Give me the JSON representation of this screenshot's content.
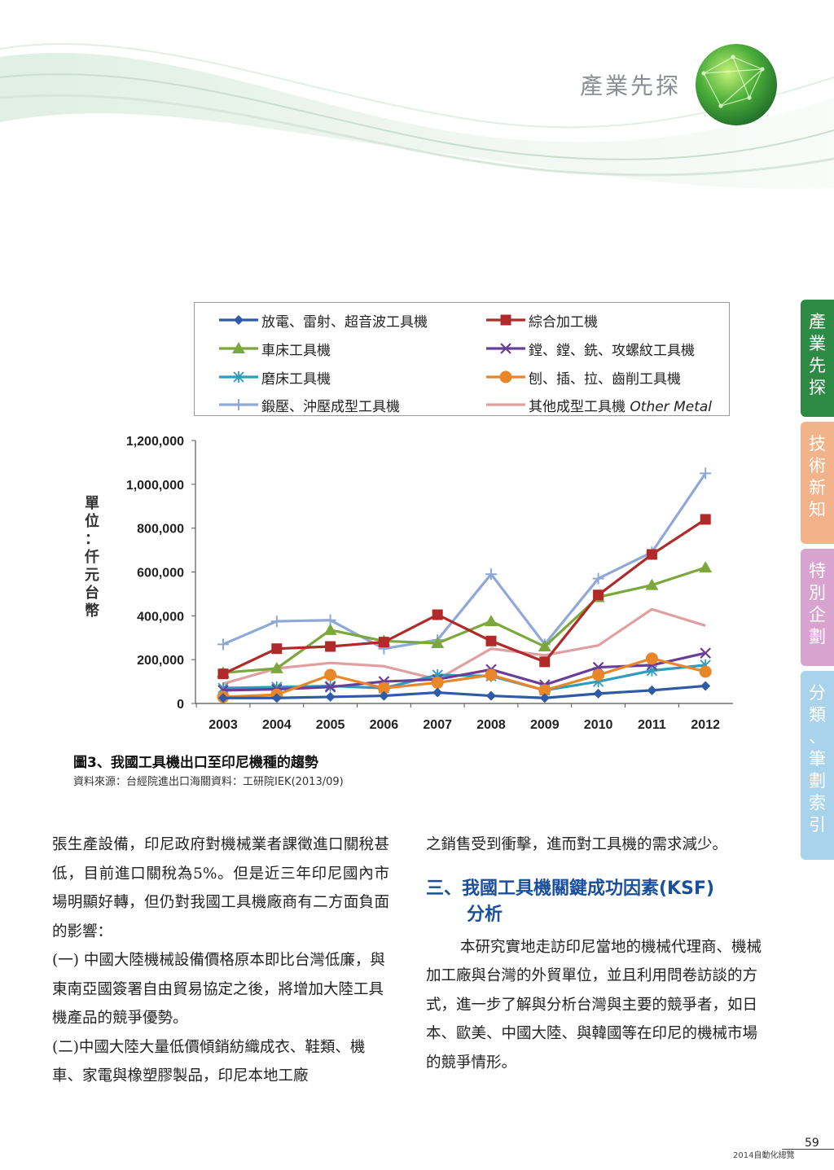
{
  "header": {
    "section": "產業先探"
  },
  "side_tabs": [
    {
      "label": "產業先探",
      "color": "#2e8b45"
    },
    {
      "label": "技術新知",
      "color": "#f2b38a"
    },
    {
      "label": "特別企劃",
      "color": "#d9a3d0"
    },
    {
      "label": "分類、筆劃索引",
      "color": "#a8d3ea"
    }
  ],
  "chart_data": {
    "type": "line",
    "categories": [
      "2003",
      "2004",
      "2005",
      "2006",
      "2007",
      "2008",
      "2009",
      "2010",
      "2011",
      "2012"
    ],
    "y_ticks": [
      "0",
      "200,000",
      "400,000",
      "600,000",
      "800,000",
      "1,000,000",
      "1,200,000"
    ],
    "ylim": [
      0,
      1200000
    ],
    "ylabel": "單位：仟元台幣",
    "legend_placement": "top",
    "series": [
      {
        "name": "放電、雷射、超音波工具機",
        "color": "#2e5aa8",
        "marker": "diamond",
        "values": [
          25000,
          25000,
          30000,
          35000,
          50000,
          35000,
          25000,
          45000,
          60000,
          80000
        ]
      },
      {
        "name": "綜合加工機",
        "color": "#b02a2a",
        "marker": "square",
        "values": [
          135000,
          250000,
          260000,
          280000,
          405000,
          285000,
          190000,
          495000,
          680000,
          840000
        ]
      },
      {
        "name": "車床工具機",
        "color": "#7ba83a",
        "marker": "triangle",
        "values": [
          140000,
          160000,
          335000,
          285000,
          275000,
          375000,
          260000,
          485000,
          540000,
          620000
        ]
      },
      {
        "name": "鏜、鏜、銑、攻螺紋工具機",
        "color": "#6a3e98",
        "marker": "x",
        "values": [
          60000,
          65000,
          75000,
          100000,
          110000,
          155000,
          85000,
          165000,
          175000,
          230000
        ]
      },
      {
        "name": "磨床工具機",
        "color": "#2e9cbf",
        "marker": "asterisk",
        "values": [
          70000,
          75000,
          80000,
          70000,
          130000,
          125000,
          60000,
          100000,
          150000,
          175000
        ]
      },
      {
        "name": "刨、插、拉、齒削工具機",
        "color": "#e8872a",
        "marker": "circle",
        "values": [
          30000,
          40000,
          130000,
          70000,
          95000,
          130000,
          60000,
          130000,
          205000,
          145000
        ]
      },
      {
        "name": "鍛壓、沖壓成型工具機",
        "color": "#8ea9d8",
        "marker": "plus",
        "values": [
          270000,
          375000,
          380000,
          250000,
          290000,
          590000,
          270000,
          570000,
          690000,
          1050000
        ]
      },
      {
        "name": "其他成型工具機",
        "name_en": "Other Metal",
        "color": "#e0a0a0",
        "marker": "none",
        "values": [
          90000,
          160000,
          185000,
          170000,
          110000,
          250000,
          220000,
          265000,
          430000,
          355000
        ]
      }
    ]
  },
  "figure": {
    "title": "圖3、我國工具機出口至印尼機種的趨勢",
    "source": "資料來源：台經院進出口海關資料：工研院IEK(2013/09)"
  },
  "left_col": {
    "p1": "張生產設備，印尼政府對機械業者課徵進口關稅甚低，目前進口關稅為5%。但是近三年印尼國內市場明顯好轉，但仍對我國工具機廠商有二方面負面的影響：",
    "p2": "(一) 中國大陸機械設備價格原本即比台灣低廉，與東南亞國簽署自由貿易協定之後，將增加大陸工具機產品的競爭優勢。",
    "p3": "(二)中國大陸大量低價傾銷紡織成衣、鞋類、機車、家電與橡塑膠製品，印尼本地工廠"
  },
  "right_col": {
    "p1": "之銷售受到衝擊，進而對工具機的需求減少。",
    "heading_line1": "三、我國工具機關鍵成功因素(KSF)",
    "heading_line2": "分析",
    "p2": "本研究實地走訪印尼當地的機械代理商、機械加工廠與台灣的外貿單位，並且利用問卷訪談的方式，進一步了解與分析台灣與主要的競爭者，如日本、歐美、中國大陸、與韓國等在印尼的機械市場的競爭情形。"
  },
  "footer": {
    "publication": "2014自動化總覽",
    "page": "59"
  }
}
